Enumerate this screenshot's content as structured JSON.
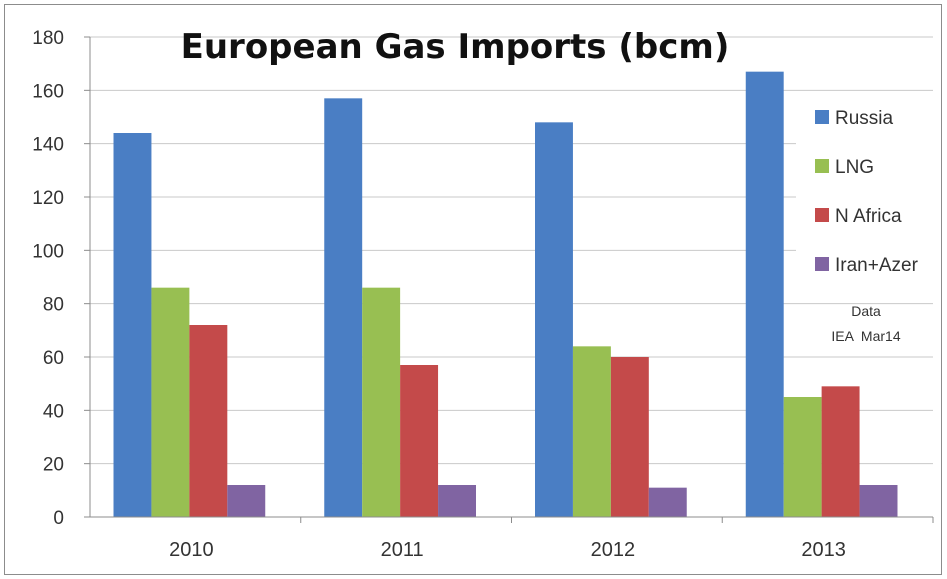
{
  "chart_data": {
    "type": "bar",
    "title": "European Gas Imports (bcm)",
    "categories": [
      "2010",
      "2011",
      "2012",
      "2013"
    ],
    "series": [
      {
        "name": "Russia",
        "color": "#4a7ec4",
        "values": [
          144,
          157,
          148,
          167
        ]
      },
      {
        "name": "LNG",
        "color": "#98bf52",
        "values": [
          86,
          86,
          64,
          45
        ]
      },
      {
        "name": "N Africa",
        "color": "#c44a4a",
        "values": [
          72,
          57,
          60,
          49
        ]
      },
      {
        "name": "Iran+Azer",
        "color": "#8064a2",
        "values": [
          12,
          12,
          11,
          12
        ]
      }
    ],
    "ylim": [
      0,
      180
    ],
    "yticks": [
      0,
      20,
      40,
      60,
      80,
      100,
      120,
      140,
      160,
      180
    ],
    "grid": true,
    "legend_position": "right",
    "note": [
      "Data",
      "IEA  Mar14"
    ]
  }
}
